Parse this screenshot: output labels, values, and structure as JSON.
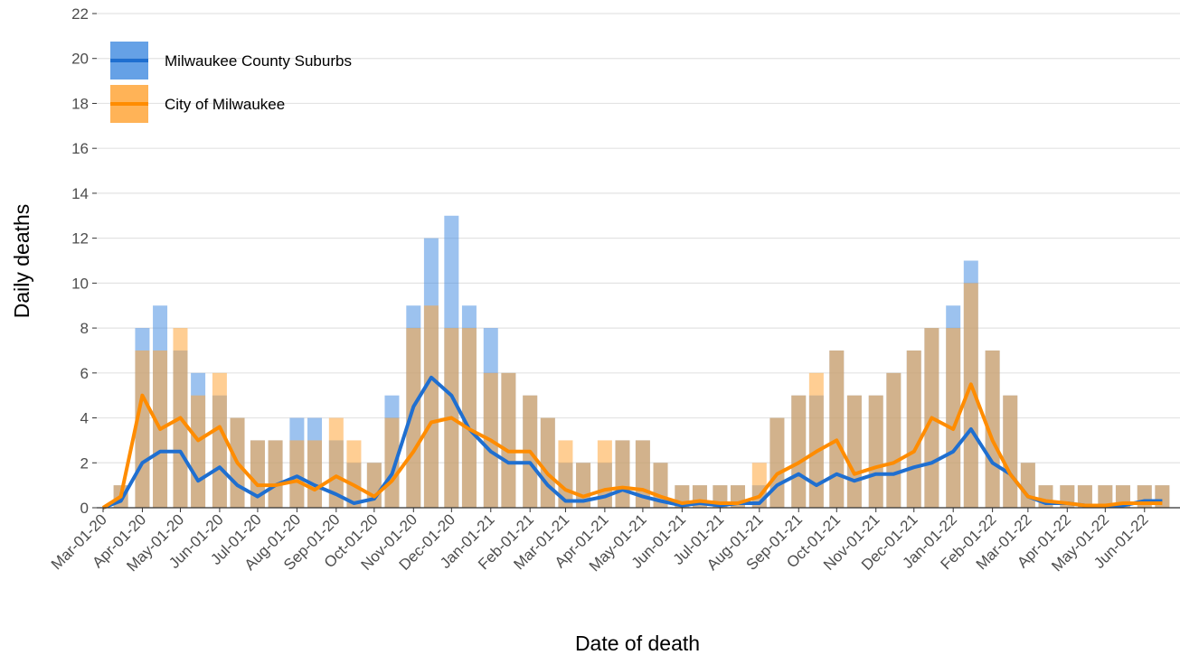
{
  "chart_data": {
    "type": "bar-line",
    "x_label": "Date of death",
    "y_label": "Daily deaths",
    "x": [
      "2020-03-01",
      "2020-03-15",
      "2020-04-01",
      "2020-04-15",
      "2020-05-01",
      "2020-05-15",
      "2020-06-01",
      "2020-06-15",
      "2020-07-01",
      "2020-07-15",
      "2020-08-01",
      "2020-08-15",
      "2020-09-01",
      "2020-09-15",
      "2020-10-01",
      "2020-10-15",
      "2020-11-01",
      "2020-11-15",
      "2020-12-01",
      "2020-12-15",
      "2021-01-01",
      "2021-01-15",
      "2021-02-01",
      "2021-02-15",
      "2021-03-01",
      "2021-03-15",
      "2021-04-01",
      "2021-04-15",
      "2021-05-01",
      "2021-05-15",
      "2021-06-01",
      "2021-06-15",
      "2021-07-01",
      "2021-07-15",
      "2021-08-01",
      "2021-08-15",
      "2021-09-01",
      "2021-09-15",
      "2021-10-01",
      "2021-10-15",
      "2021-11-01",
      "2021-11-15",
      "2021-12-01",
      "2021-12-15",
      "2022-01-01",
      "2022-01-15",
      "2022-02-01",
      "2022-02-15",
      "2022-03-01",
      "2022-03-15",
      "2022-04-01",
      "2022-04-15",
      "2022-05-01",
      "2022-05-15",
      "2022-06-01",
      "2022-06-15"
    ],
    "series": [
      {
        "name": "Milwaukee County Suburbs",
        "color": "#1f6fd0",
        "bar_color": "#4a90e2",
        "values": [
          0,
          1,
          8,
          9,
          7,
          6,
          5,
          4,
          3,
          3,
          4,
          4,
          3,
          2,
          2,
          5,
          9,
          12,
          13,
          9,
          8,
          6,
          5,
          4,
          2,
          2,
          2,
          3,
          3,
          2,
          1,
          1,
          1,
          1,
          1,
          4,
          5,
          5,
          7,
          5,
          5,
          6,
          7,
          8,
          9,
          11,
          7,
          5,
          2,
          1,
          1,
          1,
          1,
          1,
          1,
          1
        ],
        "line_values": [
          0,
          0.3,
          2,
          2.5,
          2.5,
          1.2,
          1.8,
          1,
          0.5,
          1,
          1.4,
          1,
          0.6,
          0.2,
          0.4,
          1.5,
          4.5,
          5.8,
          5,
          3.5,
          2.5,
          2,
          2,
          1,
          0.3,
          0.3,
          0.5,
          0.8,
          0.5,
          0.3,
          0.1,
          0.2,
          0.1,
          0.2,
          0.2,
          1,
          1.5,
          1,
          1.5,
          1.2,
          1.5,
          1.5,
          1.8,
          2,
          2.5,
          3.5,
          2,
          1.5,
          0.5,
          0.2,
          0.2,
          0.1,
          0.1,
          0.1,
          0.3,
          0.3
        ]
      },
      {
        "name": "City of Milwaukee",
        "color": "#ff8c00",
        "bar_color": "#ffa63a",
        "values": [
          0,
          1,
          7,
          7,
          8,
          5,
          6,
          4,
          3,
          3,
          3,
          3,
          4,
          3,
          2,
          4,
          8,
          9,
          8,
          8,
          6,
          6,
          5,
          4,
          3,
          2,
          3,
          3,
          3,
          2,
          1,
          1,
          1,
          1,
          2,
          4,
          5,
          6,
          7,
          5,
          5,
          6,
          7,
          8,
          8,
          10,
          7,
          5,
          2,
          1,
          1,
          1,
          1,
          1,
          1,
          1
        ],
        "line_values": [
          0,
          0.5,
          5,
          3.5,
          4,
          3,
          3.6,
          2,
          1,
          1,
          1.2,
          0.8,
          1.4,
          1,
          0.5,
          1.2,
          2.5,
          3.8,
          4,
          3.5,
          3,
          2.5,
          2.5,
          1.5,
          0.8,
          0.5,
          0.8,
          0.9,
          0.8,
          0.5,
          0.2,
          0.3,
          0.2,
          0.2,
          0.5,
          1.5,
          2,
          2.5,
          3,
          1.5,
          1.8,
          2,
          2.5,
          4,
          3.5,
          5.5,
          3,
          1.5,
          0.5,
          0.3,
          0.2,
          0.1,
          0.1,
          0.2,
          0.2,
          0.2
        ]
      }
    ],
    "xlim": [
      "2020-02-25",
      "2022-06-29"
    ],
    "xticks": [
      {
        "value": "2020-03-01",
        "label": "Mar-01-20"
      },
      {
        "value": "2020-04-01",
        "label": "Apr-01-20"
      },
      {
        "value": "2020-05-01",
        "label": "May-01-20"
      },
      {
        "value": "2020-06-01",
        "label": "Jun-01-20"
      },
      {
        "value": "2020-07-01",
        "label": "Jul-01-20"
      },
      {
        "value": "2020-08-01",
        "label": "Aug-01-20"
      },
      {
        "value": "2020-09-01",
        "label": "Sep-01-20"
      },
      {
        "value": "2020-10-01",
        "label": "Oct-01-20"
      },
      {
        "value": "2020-11-01",
        "label": "Nov-01-20"
      },
      {
        "value": "2020-12-01",
        "label": "Dec-01-20"
      },
      {
        "value": "2021-01-01",
        "label": "Jan-01-21"
      },
      {
        "value": "2021-02-01",
        "label": "Feb-01-21"
      },
      {
        "value": "2021-03-01",
        "label": "Mar-01-21"
      },
      {
        "value": "2021-04-01",
        "label": "Apr-01-21"
      },
      {
        "value": "2021-05-01",
        "label": "May-01-21"
      },
      {
        "value": "2021-06-01",
        "label": "Jun-01-21"
      },
      {
        "value": "2021-07-01",
        "label": "Jul-01-21"
      },
      {
        "value": "2021-08-01",
        "label": "Aug-01-21"
      },
      {
        "value": "2021-09-01",
        "label": "Sep-01-21"
      },
      {
        "value": "2021-10-01",
        "label": "Oct-01-21"
      },
      {
        "value": "2021-11-01",
        "label": "Nov-01-21"
      },
      {
        "value": "2021-12-01",
        "label": "Dec-01-21"
      },
      {
        "value": "2022-01-01",
        "label": "Jan-01-22"
      },
      {
        "value": "2022-02-01",
        "label": "Feb-01-22"
      },
      {
        "value": "2022-03-01",
        "label": "Mar-01-22"
      },
      {
        "value": "2022-04-01",
        "label": "Apr-01-22"
      },
      {
        "value": "2022-05-01",
        "label": "May-01-22"
      },
      {
        "value": "2022-06-01",
        "label": "Jun-01-22"
      }
    ],
    "ylim": [
      0,
      22
    ],
    "yticks": [
      0,
      2,
      4,
      6,
      8,
      10,
      12,
      14,
      16,
      18,
      20,
      22
    ],
    "grid": true,
    "legend_position": "top-left"
  }
}
